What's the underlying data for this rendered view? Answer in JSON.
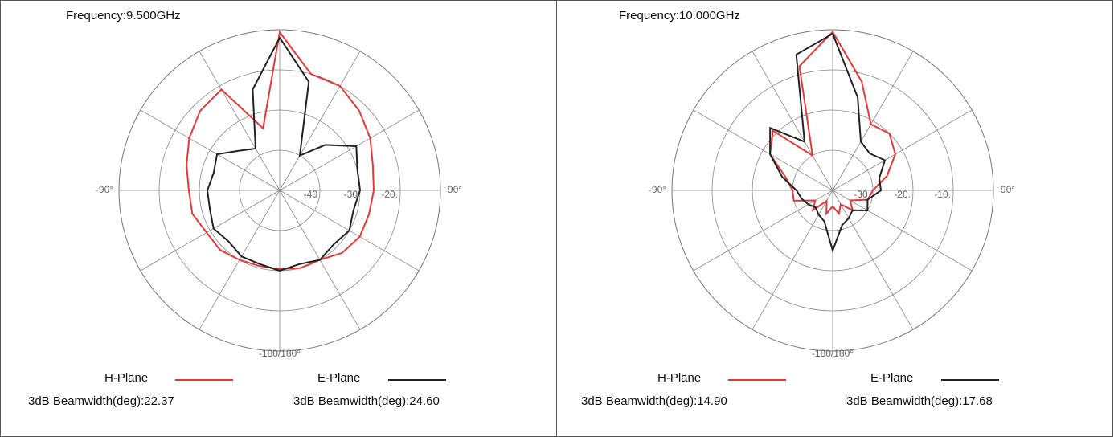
{
  "chart_data": [
    {
      "type": "polar",
      "title": "Frequency:9.500GHz",
      "theta": [
        -180,
        -165,
        -150,
        -135,
        -120,
        -105,
        -90,
        -75,
        -60,
        -45,
        -30,
        -15,
        0,
        15,
        30,
        45,
        60,
        75,
        90,
        105,
        120,
        135,
        150,
        165
      ],
      "rlim": [
        -50,
        -10
      ],
      "rticks": [
        {
          "value": -40,
          "label": "-40"
        },
        {
          "value": -30,
          "label": "-30"
        },
        {
          "value": -20,
          "label": "-20."
        }
      ],
      "thetaticks": [
        {
          "value": -90,
          "label": "-90°"
        },
        {
          "value": 90,
          "label": "90°"
        },
        {
          "value": 180,
          "label": "-180/180°"
        }
      ],
      "angle_grid_step": 30,
      "series": [
        {
          "name": "H-Plane",
          "color": "#e03a3a",
          "beamwidth_label": "3dB Beamwidth(deg):22.37",
          "values": [
            -30.4,
            -30.5,
            -30,
            -29,
            -29,
            -27.5,
            -27.4,
            -26,
            -24,
            -22,
            -21,
            -34,
            -10.6,
            -20,
            -20,
            -22,
            -24,
            -26,
            -26.6,
            -27,
            -27,
            -28,
            -30,
            -30
          ]
        },
        {
          "name": "E-Plane",
          "color": "#222222",
          "beamwidth_label": "3dB Beamwidth(deg):24.60",
          "values": [
            -30,
            -31,
            -31,
            -32,
            -31,
            -32,
            -32,
            -33,
            -32,
            -36,
            -38,
            -24,
            -12,
            -22,
            -40,
            -34,
            -28,
            -30,
            -30,
            -31,
            -30,
            -31,
            -30,
            -31
          ]
        }
      ]
    },
    {
      "type": "polar",
      "title": "Frequency:10.000GHz",
      "theta": [
        -180,
        -165,
        -150,
        -135,
        -120,
        -105,
        -90,
        -75,
        -60,
        -45,
        -30,
        -15,
        0,
        15,
        30,
        45,
        60,
        75,
        90,
        105,
        120,
        135,
        150,
        165
      ],
      "rlim": [
        -40,
        0
      ],
      "rticks": [
        {
          "value": -30,
          "label": "-30."
        },
        {
          "value": -20,
          "label": "-20."
        },
        {
          "value": -10,
          "label": "-10."
        }
      ],
      "thetaticks": [
        {
          "value": -90,
          "label": "-90°"
        },
        {
          "value": 90,
          "label": "90°"
        },
        {
          "value": 180,
          "label": "-180/180°"
        }
      ],
      "angle_grid_step": 30,
      "series": [
        {
          "name": "H-Plane",
          "color": "#e03a3a",
          "beamwidth_label": "3dB Beamwidth(deg):14.90",
          "values": [
            -36,
            -34,
            -37,
            -33,
            -35,
            -30,
            -30,
            -28,
            -22,
            -19,
            -30,
            -8,
            -0.5,
            -12,
            -21,
            -20,
            -22,
            -26,
            -30,
            -31,
            -35,
            -33,
            -36,
            -34
          ]
        },
        {
          "name": "E-Plane",
          "color": "#222222",
          "beamwidth_label": "3dB Beamwidth(deg):17.68",
          "values": [
            -25,
            -32,
            -33,
            -34,
            -33,
            -32,
            -31,
            -27,
            -22,
            -18,
            -26,
            -5,
            -1,
            -16,
            -26,
            -27,
            -25,
            -28,
            -28,
            -31,
            -30,
            -33,
            -32,
            -31
          ]
        }
      ]
    }
  ]
}
